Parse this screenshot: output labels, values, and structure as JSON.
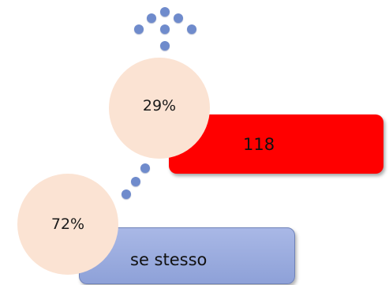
{
  "items": [
    {
      "percent": "29%",
      "label": "118",
      "bar_color": "#ff0000"
    },
    {
      "percent": "72%",
      "label": "se stesso",
      "bar_color": "#97a8dc"
    }
  ],
  "colors": {
    "circle_fill": "#fbe3d3",
    "dot_fill": "#6f8bcc"
  }
}
